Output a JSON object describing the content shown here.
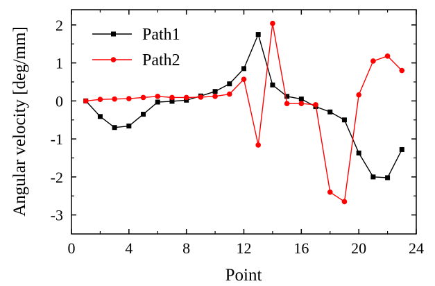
{
  "chart_data": {
    "type": "line",
    "title": "",
    "xlabel": "Point",
    "ylabel": "Angular velocity [deg/mm]",
    "xlim": [
      0,
      24
    ],
    "ylim": [
      -3.5,
      2.4
    ],
    "xticks": [
      0,
      4,
      8,
      12,
      16,
      20,
      24
    ],
    "yticks": [
      2,
      1,
      0,
      -1,
      -2,
      -3
    ],
    "grid": false,
    "legend_position": "top-left",
    "x": [
      1,
      2,
      3,
      4,
      5,
      6,
      7,
      8,
      9,
      10,
      11,
      12,
      13,
      14,
      15,
      16,
      17,
      18,
      19,
      20,
      21,
      22,
      23
    ],
    "series": [
      {
        "name": "Path1",
        "color": "#000000",
        "marker": "square",
        "values": [
          0.0,
          -0.41,
          -0.7,
          -0.66,
          -0.35,
          -0.03,
          -0.01,
          0.02,
          0.13,
          0.25,
          0.45,
          0.85,
          1.75,
          0.42,
          0.12,
          0.05,
          -0.15,
          -0.29,
          -0.5,
          -1.37,
          -2.0,
          -2.02,
          -1.28
        ]
      },
      {
        "name": "Path2",
        "color": "#ff0000",
        "marker": "circle",
        "values": [
          0.0,
          0.04,
          0.05,
          0.06,
          0.09,
          0.12,
          0.09,
          0.09,
          0.1,
          0.12,
          0.18,
          0.57,
          -1.16,
          2.04,
          -0.07,
          -0.07,
          -0.1,
          -2.4,
          -2.65,
          0.16,
          1.05,
          1.18,
          0.8
        ]
      }
    ]
  }
}
